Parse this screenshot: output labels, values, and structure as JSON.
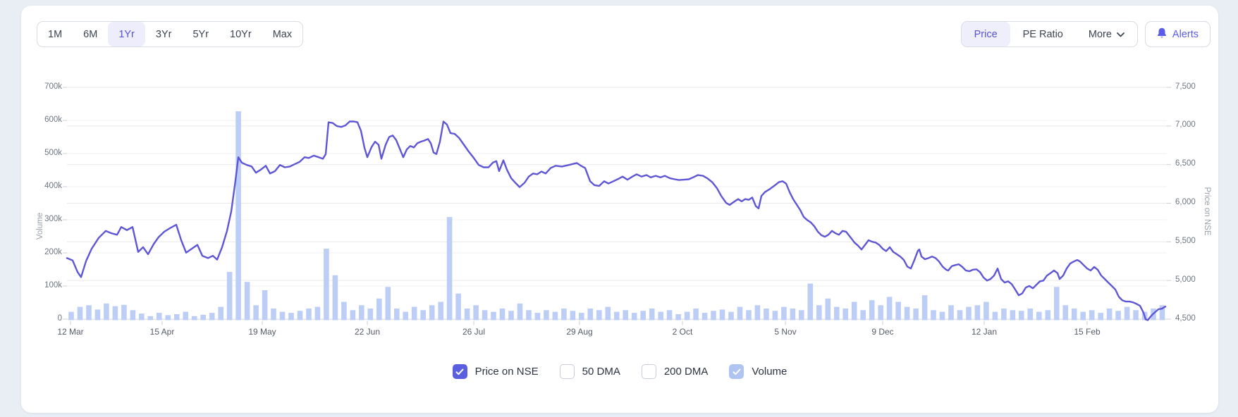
{
  "toolbar": {
    "ranges": [
      "1M",
      "6M",
      "1Yr",
      "3Yr",
      "5Yr",
      "10Yr",
      "Max"
    ],
    "active_range": "1Yr",
    "views": [
      "Price",
      "PE Ratio"
    ],
    "active_view": "Price",
    "more_label": "More",
    "alerts_label": "Alerts"
  },
  "colors": {
    "price_line": "#5f56d6",
    "volume_bar": "#bdcef6",
    "accent_purple": "#5a52d5",
    "alerts_purple": "#5b5ce6",
    "checked_box_purple": "#5a5fe0",
    "checked_box_blue": "#b0c4f2",
    "grid_major": "#e9e9e9",
    "grid_minor": "#f2f2f2",
    "tick_mark": "#cfcfcf",
    "baseline": "#e2e2e2"
  },
  "chart_data": {
    "type": "line+bar",
    "left_axis": {
      "title": "Volume",
      "ticks": [
        "700k",
        "600k",
        "500k",
        "400k",
        "300k",
        "200k",
        "100k",
        "0"
      ],
      "min": 0,
      "max": 700000
    },
    "right_axis": {
      "title": "Price on NSE",
      "ticks": [
        "7,500",
        "7,000",
        "6,500",
        "6,000",
        "5,500",
        "5,000",
        "4,500"
      ],
      "min": 4500,
      "max": 7500
    },
    "x_ticks": [
      "12 Mar",
      "15 Apr",
      "19 May",
      "22 Jun",
      "26 Jul",
      "29 Aug",
      "2 Oct",
      "5 Nov",
      "9 Dec",
      "12 Jan",
      "15 Feb"
    ],
    "legend": [
      {
        "label": "Price on NSE",
        "checked": true,
        "box": "purple"
      },
      {
        "label": "50 DMA",
        "checked": false,
        "box": "none"
      },
      {
        "label": "200 DMA",
        "checked": false,
        "box": "none"
      },
      {
        "label": "Volume",
        "checked": true,
        "box": "blue"
      }
    ],
    "price_series": {
      "name": "Price on NSE",
      "points_x_price": [
        [
          95,
          5300
        ],
        [
          103,
          5270
        ],
        [
          110,
          5120
        ],
        [
          115,
          5055
        ],
        [
          122,
          5260
        ],
        [
          130,
          5420
        ],
        [
          140,
          5560
        ],
        [
          150,
          5650
        ],
        [
          158,
          5620
        ],
        [
          166,
          5600
        ],
        [
          172,
          5700
        ],
        [
          180,
          5660
        ],
        [
          188,
          5700
        ],
        [
          196,
          5380
        ],
        [
          203,
          5440
        ],
        [
          210,
          5350
        ],
        [
          218,
          5480
        ],
        [
          225,
          5570
        ],
        [
          233,
          5640
        ],
        [
          242,
          5690
        ],
        [
          250,
          5730
        ],
        [
          257,
          5530
        ],
        [
          264,
          5370
        ],
        [
          272,
          5420
        ],
        [
          280,
          5470
        ],
        [
          287,
          5330
        ],
        [
          295,
          5300
        ],
        [
          302,
          5330
        ],
        [
          308,
          5280
        ],
        [
          315,
          5440
        ],
        [
          322,
          5650
        ],
        [
          328,
          5900
        ],
        [
          334,
          6300
        ],
        [
          338,
          6600
        ],
        [
          343,
          6530
        ],
        [
          350,
          6500
        ],
        [
          357,
          6480
        ],
        [
          363,
          6400
        ],
        [
          370,
          6440
        ],
        [
          377,
          6490
        ],
        [
          383,
          6390
        ],
        [
          390,
          6420
        ],
        [
          397,
          6500
        ],
        [
          404,
          6470
        ],
        [
          411,
          6480
        ],
        [
          418,
          6510
        ],
        [
          425,
          6540
        ],
        [
          432,
          6600
        ],
        [
          438,
          6590
        ],
        [
          445,
          6620
        ],
        [
          452,
          6600
        ],
        [
          458,
          6580
        ],
        [
          462,
          6640
        ],
        [
          466,
          7050
        ],
        [
          472,
          7040
        ],
        [
          478,
          7000
        ],
        [
          484,
          6990
        ],
        [
          490,
          7010
        ],
        [
          496,
          7060
        ],
        [
          502,
          7060
        ],
        [
          507,
          7050
        ],
        [
          512,
          6940
        ],
        [
          517,
          6720
        ],
        [
          521,
          6600
        ],
        [
          527,
          6730
        ],
        [
          532,
          6800
        ],
        [
          537,
          6760
        ],
        [
          541,
          6580
        ],
        [
          547,
          6760
        ],
        [
          552,
          6860
        ],
        [
          557,
          6880
        ],
        [
          562,
          6820
        ],
        [
          567,
          6710
        ],
        [
          572,
          6600
        ],
        [
          577,
          6700
        ],
        [
          582,
          6745
        ],
        [
          587,
          6725
        ],
        [
          592,
          6780
        ],
        [
          597,
          6800
        ],
        [
          602,
          6815
        ],
        [
          607,
          6835
        ],
        [
          611,
          6780
        ],
        [
          615,
          6660
        ],
        [
          619,
          6640
        ],
        [
          624,
          6800
        ],
        [
          629,
          7060
        ],
        [
          634,
          7020
        ],
        [
          639,
          6910
        ],
        [
          645,
          6900
        ],
        [
          651,
          6850
        ],
        [
          658,
          6760
        ],
        [
          665,
          6670
        ],
        [
          672,
          6590
        ],
        [
          679,
          6500
        ],
        [
          686,
          6470
        ],
        [
          693,
          6470
        ],
        [
          699,
          6530
        ],
        [
          704,
          6550
        ],
        [
          708,
          6420
        ],
        [
          714,
          6560
        ],
        [
          719,
          6440
        ],
        [
          725,
          6330
        ],
        [
          731,
          6270
        ],
        [
          737,
          6215
        ],
        [
          744,
          6270
        ],
        [
          750,
          6350
        ],
        [
          756,
          6390
        ],
        [
          762,
          6380
        ],
        [
          768,
          6415
        ],
        [
          774,
          6390
        ],
        [
          781,
          6460
        ],
        [
          788,
          6490
        ],
        [
          797,
          6480
        ],
        [
          807,
          6500
        ],
        [
          818,
          6525
        ],
        [
          824,
          6490
        ],
        [
          830,
          6460
        ],
        [
          837,
          6290
        ],
        [
          843,
          6240
        ],
        [
          850,
          6230
        ],
        [
          857,
          6290
        ],
        [
          863,
          6260
        ],
        [
          870,
          6290
        ],
        [
          877,
          6320
        ],
        [
          883,
          6350
        ],
        [
          890,
          6310
        ],
        [
          897,
          6350
        ],
        [
          903,
          6380
        ],
        [
          910,
          6350
        ],
        [
          917,
          6370
        ],
        [
          923,
          6340
        ],
        [
          930,
          6360
        ],
        [
          937,
          6340
        ],
        [
          943,
          6360
        ],
        [
          950,
          6330
        ],
        [
          957,
          6315
        ],
        [
          963,
          6305
        ],
        [
          970,
          6310
        ],
        [
          977,
          6315
        ],
        [
          983,
          6340
        ],
        [
          990,
          6370
        ],
        [
          997,
          6360
        ],
        [
          1003,
          6330
        ],
        [
          1010,
          6280
        ],
        [
          1017,
          6200
        ],
        [
          1023,
          6100
        ],
        [
          1030,
          6010
        ],
        [
          1035,
          5985
        ],
        [
          1042,
          6030
        ],
        [
          1047,
          6060
        ],
        [
          1052,
          6030
        ],
        [
          1057,
          6060
        ],
        [
          1062,
          6050
        ],
        [
          1067,
          6080
        ],
        [
          1072,
          5970
        ],
        [
          1076,
          5940
        ],
        [
          1080,
          6100
        ],
        [
          1085,
          6150
        ],
        [
          1092,
          6190
        ],
        [
          1098,
          6230
        ],
        [
          1105,
          6280
        ],
        [
          1110,
          6290
        ],
        [
          1115,
          6260
        ],
        [
          1120,
          6150
        ],
        [
          1125,
          6060
        ],
        [
          1130,
          5990
        ],
        [
          1135,
          5920
        ],
        [
          1140,
          5830
        ],
        [
          1145,
          5790
        ],
        [
          1150,
          5760
        ],
        [
          1155,
          5710
        ],
        [
          1160,
          5640
        ],
        [
          1165,
          5595
        ],
        [
          1170,
          5575
        ],
        [
          1175,
          5600
        ],
        [
          1180,
          5650
        ],
        [
          1185,
          5620
        ],
        [
          1190,
          5600
        ],
        [
          1195,
          5650
        ],
        [
          1200,
          5640
        ],
        [
          1207,
          5560
        ],
        [
          1212,
          5500
        ],
        [
          1217,
          5460
        ],
        [
          1222,
          5410
        ],
        [
          1227,
          5470
        ],
        [
          1232,
          5530
        ],
        [
          1237,
          5510
        ],
        [
          1242,
          5500
        ],
        [
          1247,
          5470
        ],
        [
          1252,
          5420
        ],
        [
          1257,
          5390
        ],
        [
          1262,
          5440
        ],
        [
          1267,
          5380
        ],
        [
          1272,
          5350
        ],
        [
          1277,
          5320
        ],
        [
          1282,
          5275
        ],
        [
          1287,
          5190
        ],
        [
          1292,
          5165
        ],
        [
          1297,
          5275
        ],
        [
          1302,
          5395
        ],
        [
          1304,
          5410
        ],
        [
          1307,
          5320
        ],
        [
          1312,
          5285
        ],
        [
          1317,
          5300
        ],
        [
          1322,
          5320
        ],
        [
          1327,
          5300
        ],
        [
          1332,
          5255
        ],
        [
          1337,
          5190
        ],
        [
          1342,
          5150
        ],
        [
          1345,
          5140
        ],
        [
          1350,
          5195
        ],
        [
          1355,
          5210
        ],
        [
          1360,
          5220
        ],
        [
          1365,
          5185
        ],
        [
          1370,
          5140
        ],
        [
          1375,
          5130
        ],
        [
          1380,
          5150
        ],
        [
          1385,
          5155
        ],
        [
          1390,
          5120
        ],
        [
          1395,
          5050
        ],
        [
          1400,
          5010
        ],
        [
          1405,
          5030
        ],
        [
          1410,
          5075
        ],
        [
          1415,
          5165
        ],
        [
          1420,
          5030
        ],
        [
          1425,
          4985
        ],
        [
          1430,
          5000
        ],
        [
          1435,
          4965
        ],
        [
          1440,
          4895
        ],
        [
          1445,
          4820
        ],
        [
          1450,
          4845
        ],
        [
          1455,
          4920
        ],
        [
          1460,
          4940
        ],
        [
          1465,
          4910
        ],
        [
          1470,
          4955
        ],
        [
          1475,
          5000
        ],
        [
          1480,
          5010
        ],
        [
          1485,
          5075
        ],
        [
          1490,
          5105
        ],
        [
          1495,
          5140
        ],
        [
          1500,
          5105
        ],
        [
          1503,
          5030
        ],
        [
          1508,
          5075
        ],
        [
          1513,
          5165
        ],
        [
          1518,
          5230
        ],
        [
          1523,
          5255
        ],
        [
          1528,
          5275
        ],
        [
          1532,
          5255
        ],
        [
          1537,
          5210
        ],
        [
          1542,
          5165
        ],
        [
          1547,
          5140
        ],
        [
          1552,
          5185
        ],
        [
          1557,
          5150
        ],
        [
          1562,
          5075
        ],
        [
          1567,
          5030
        ],
        [
          1572,
          4985
        ],
        [
          1577,
          4940
        ],
        [
          1582,
          4895
        ],
        [
          1587,
          4800
        ],
        [
          1592,
          4755
        ],
        [
          1597,
          4740
        ],
        [
          1602,
          4740
        ],
        [
          1607,
          4730
        ],
        [
          1612,
          4710
        ],
        [
          1617,
          4685
        ],
        [
          1622,
          4595
        ],
        [
          1625,
          4510
        ],
        [
          1628,
          4500
        ],
        [
          1632,
          4545
        ],
        [
          1635,
          4575
        ],
        [
          1638,
          4600
        ],
        [
          1643,
          4640
        ],
        [
          1648,
          4648
        ],
        [
          1653,
          4675
        ]
      ]
    },
    "volume_series": {
      "name": "Volume",
      "values_thousands": [
        25,
        40,
        45,
        32,
        50,
        42,
        46,
        30,
        20,
        12,
        22,
        15,
        18,
        25,
        12,
        16,
        22,
        40,
        145,
        628,
        115,
        45,
        90,
        35,
        25,
        22,
        28,
        35,
        40,
        215,
        135,
        55,
        30,
        45,
        35,
        65,
        100,
        35,
        25,
        40,
        30,
        45,
        55,
        310,
        80,
        35,
        45,
        30,
        25,
        35,
        28,
        50,
        30,
        22,
        30,
        25,
        35,
        28,
        22,
        35,
        30,
        40,
        25,
        30,
        22,
        28,
        35,
        25,
        30,
        18,
        25,
        35,
        22,
        28,
        32,
        25,
        40,
        30,
        45,
        35,
        28,
        40,
        35,
        30,
        110,
        45,
        65,
        40,
        35,
        55,
        30,
        60,
        45,
        70,
        55,
        40,
        35,
        75,
        30,
        25,
        45,
        30,
        40,
        45,
        55,
        25,
        35,
        30,
        28,
        35,
        25,
        30,
        100,
        45,
        35,
        25,
        30,
        22,
        35,
        28,
        40,
        30,
        25,
        35,
        45
      ]
    }
  }
}
